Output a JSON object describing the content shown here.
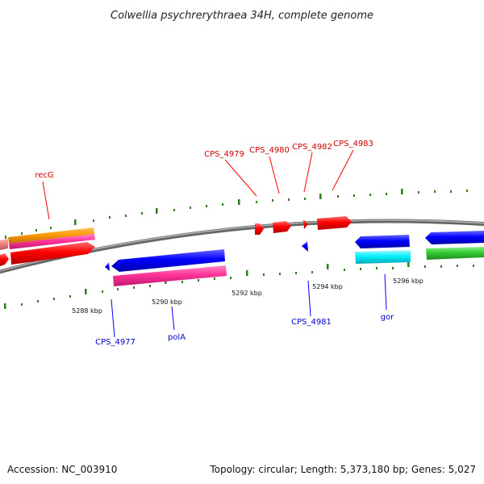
{
  "header": {
    "title": "Colwellia psychrerythraea 34H, complete genome"
  },
  "footer": {
    "accession": "Accession: NC_003910",
    "summary": "Topology: circular; Length: 5,373,180 bp; Genes: 5,027"
  },
  "scale": {
    "tick_labels": [
      "5288 kbp",
      "5290 kbp",
      "5292 kbp",
      "5294 kbp",
      "5296 kbp"
    ]
  },
  "labels": {
    "forward": [
      "recG",
      "CPS_4979",
      "CPS_4980",
      "CPS_4982",
      "CPS_4983"
    ],
    "reverse": [
      "CPS_4977",
      "polA",
      "CPS_4981",
      "gor"
    ]
  },
  "colors": {
    "forward_gene": "#ff0000",
    "reverse_gene": "#0000ff",
    "forward_label": "#cc0000",
    "reverse_label": "#0000cc",
    "backbone": "#888888",
    "tick_mark": "#2e7d1f",
    "feature_pink": "#ff3399",
    "feature_orange": "#ff9900",
    "feature_cyan": "#00e5ff",
    "feature_green": "#33cc33",
    "feature_salmon": "#f08080"
  }
}
